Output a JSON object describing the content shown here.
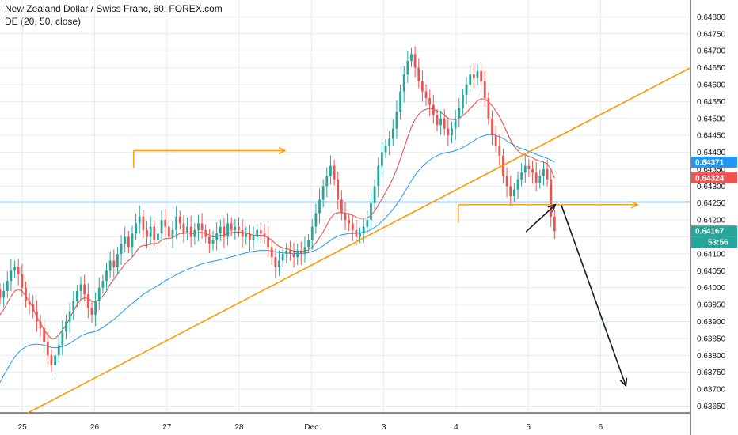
{
  "header": {
    "title": "New Zealand Dollar / Swiss Franc, 60, FOREX.com",
    "indicator": "DE (20, 50, close)"
  },
  "colors": {
    "up": "#26a69a",
    "down": "#ef5350",
    "ma_fast": "#e8443a",
    "ma_slow": "#2196f3",
    "trendline": "#ff9800",
    "hline": "#2196f3",
    "arrow": "#131722",
    "tag_blue": "#2196f3",
    "tag_red": "#ef5350",
    "tag_teal": "#26a69a",
    "grid": "#e6ecf0"
  },
  "chart_data": {
    "type": "candlestick",
    "title": "New Zealand Dollar / Swiss Franc, 60, FOREX.com",
    "ylim": [
      0.6363,
      0.6485
    ],
    "y_ticks": [
      "0.64800",
      "0.64750",
      "0.64700",
      "0.64650",
      "0.64600",
      "0.64550",
      "0.64500",
      "0.64450",
      "0.64400",
      "0.64350",
      "0.64300",
      "0.64250",
      "0.64200",
      "0.64150",
      "0.64100",
      "0.64050",
      "0.64000",
      "0.63950",
      "0.63900",
      "0.63850",
      "0.63800",
      "0.63750",
      "0.63700",
      "0.63650"
    ],
    "x_ticks": [
      "25",
      "26",
      "27",
      "28",
      "Dec",
      "3",
      "4",
      "5",
      "6"
    ],
    "x_tick_pos": [
      0.6,
      25.2,
      49.8,
      74.4,
      99,
      123.6,
      148.2,
      172.8,
      197.4
    ],
    "xlim": [
      -7,
      228
    ],
    "price_tags": [
      {
        "label": "0.64371",
        "value": 0.64371,
        "color": "blue"
      },
      {
        "label": "0.64324",
        "value": 0.64324,
        "color": "red"
      },
      {
        "label": "0.64167",
        "value": 0.64167,
        "color": "teal"
      }
    ],
    "countdown": "53:56",
    "drawings": {
      "horizontal_line": 0.64253,
      "trendline": [
        [
          2.5,
          0.6363
        ],
        [
          228,
          0.6465
        ]
      ],
      "box_top": {
        "x": [
          38.5,
          90
        ],
        "y": 0.64405
      },
      "box_mid": {
        "x": [
          149,
          210
        ],
        "y": 0.64245
      },
      "arrow_short": [
        [
          172,
          0.64165
        ],
        [
          182,
          0.64245
        ]
      ],
      "arrow_long": [
        [
          184,
          0.64245
        ],
        [
          206,
          0.6371
        ]
      ]
    },
    "candles": {
      "start_x": -7,
      "step": 1.25,
      "open0": 0.63995,
      "series_encoding": "close-to-close path",
      "closes": [
        0.6397,
        0.6399,
        0.6402,
        0.6405,
        0.6406,
        0.6404,
        0.64,
        0.6396,
        0.6395,
        0.6393,
        0.639,
        0.6388,
        0.6384,
        0.638,
        0.6377,
        0.638,
        0.6383,
        0.6387,
        0.639,
        0.6393,
        0.6396,
        0.6399,
        0.6401,
        0.6398,
        0.6394,
        0.6392,
        0.6396,
        0.64,
        0.6402,
        0.6405,
        0.6408,
        0.6406,
        0.641,
        0.6413,
        0.6415,
        0.6412,
        0.6416,
        0.6419,
        0.6421,
        0.6417,
        0.6415,
        0.6418,
        0.6414,
        0.6416,
        0.642,
        0.6418,
        0.6415,
        0.6417,
        0.6421,
        0.6419,
        0.6416,
        0.6418,
        0.6415,
        0.6417,
        0.6419,
        0.6417,
        0.6415,
        0.6413,
        0.6414,
        0.6416,
        0.6418,
        0.6415,
        0.6419,
        0.6417,
        0.6418,
        0.6417,
        0.6415,
        0.6416,
        0.6414,
        0.6415,
        0.6417,
        0.6416,
        0.6415,
        0.6412,
        0.6409,
        0.6406,
        0.6408,
        0.641,
        0.6411,
        0.641,
        0.6409,
        0.6411,
        0.641,
        0.6412,
        0.6414,
        0.6418,
        0.6422,
        0.6426,
        0.643,
        0.6433,
        0.6436,
        0.6432,
        0.6426,
        0.6422,
        0.642,
        0.6419,
        0.6417,
        0.6415,
        0.6416,
        0.6418,
        0.642,
        0.6425,
        0.643,
        0.6436,
        0.644,
        0.6442,
        0.6444,
        0.6447,
        0.6452,
        0.6458,
        0.6463,
        0.6467,
        0.6469,
        0.6465,
        0.6461,
        0.6458,
        0.6456,
        0.6454,
        0.6451,
        0.6448,
        0.645,
        0.6447,
        0.6445,
        0.6447,
        0.645,
        0.6453,
        0.6457,
        0.646,
        0.6463,
        0.6462,
        0.6464,
        0.6461,
        0.6456,
        0.645,
        0.6445,
        0.6442,
        0.6439,
        0.6433,
        0.643,
        0.6427,
        0.6429,
        0.6432,
        0.6434,
        0.6436,
        0.6435,
        0.6434,
        0.6431,
        0.6433,
        0.6435,
        0.6432,
        0.6421,
        0.64167
      ]
    },
    "ma_fast_values": {
      "start_x": -7,
      "step": 1.25,
      "values": [
        0.6392,
        0.63935,
        0.63955,
        0.63975,
        0.6399,
        0.63995,
        0.6399,
        0.63975,
        0.6396,
        0.6394,
        0.63915,
        0.63895,
        0.63875,
        0.6386,
        0.6385,
        0.6385,
        0.6386,
        0.63875,
        0.6389,
        0.6391,
        0.6393,
        0.6395,
        0.63965,
        0.6397,
        0.63968,
        0.6396,
        0.63958,
        0.63965,
        0.63975,
        0.6399,
        0.6401,
        0.64025,
        0.6404,
        0.64055,
        0.6407,
        0.6408,
        0.6409,
        0.64105,
        0.6412,
        0.64125,
        0.64125,
        0.6413,
        0.6413,
        0.64132,
        0.6414,
        0.64145,
        0.64145,
        0.64148,
        0.64155,
        0.6416,
        0.6416,
        0.64162,
        0.6416,
        0.6416,
        0.64163,
        0.64163,
        0.6416,
        0.64155,
        0.6415,
        0.6415,
        0.64155,
        0.64155,
        0.6416,
        0.64162,
        0.64164,
        0.64165,
        0.64163,
        0.64162,
        0.64158,
        0.64155,
        0.64155,
        0.64155,
        0.64153,
        0.64148,
        0.6414,
        0.6413,
        0.64122,
        0.64118,
        0.64115,
        0.64112,
        0.64108,
        0.64108,
        0.64107,
        0.64108,
        0.64112,
        0.6412,
        0.64132,
        0.64148,
        0.64165,
        0.64185,
        0.64205,
        0.64218,
        0.64222,
        0.64222,
        0.6422,
        0.64218,
        0.64214,
        0.64208,
        0.64205,
        0.64205,
        0.64206,
        0.64214,
        0.64226,
        0.64244,
        0.64262,
        0.64282,
        0.64302,
        0.64324,
        0.6435,
        0.6438,
        0.64412,
        0.64445,
        0.64475,
        0.64497,
        0.64512,
        0.64522,
        0.64527,
        0.6453,
        0.64528,
        0.64522,
        0.64518,
        0.6451,
        0.645,
        0.64497,
        0.64497,
        0.645,
        0.64508,
        0.64518,
        0.6453,
        0.6454,
        0.64552,
        0.64558,
        0.64557,
        0.6455,
        0.64538,
        0.64522,
        0.64505,
        0.64483,
        0.6446,
        0.64436,
        0.64418,
        0.64404,
        0.64396,
        0.64392,
        0.64388,
        0.64384,
        0.64378,
        0.64374,
        0.64371,
        0.64366,
        0.6435,
        0.64324
      ]
    },
    "ma_slow_values": {
      "start_x": -7,
      "step": 1.25,
      "values": [
        0.6372,
        0.6374,
        0.6376,
        0.63778,
        0.63795,
        0.63808,
        0.63818,
        0.63825,
        0.6383,
        0.63832,
        0.63833,
        0.63832,
        0.6383,
        0.63827,
        0.63823,
        0.63822,
        0.63823,
        0.63826,
        0.6383,
        0.63836,
        0.63843,
        0.6385,
        0.63857,
        0.63862,
        0.63866,
        0.63868,
        0.63871,
        0.63876,
        0.63882,
        0.6389,
        0.63898,
        0.63906,
        0.63915,
        0.63925,
        0.63935,
        0.63944,
        0.63953,
        0.63962,
        0.63972,
        0.6398,
        0.63987,
        0.63994,
        0.64,
        0.64006,
        0.64013,
        0.6402,
        0.64026,
        0.64032,
        0.64038,
        0.64044,
        0.64049,
        0.64054,
        0.64058,
        0.64062,
        0.64066,
        0.6407,
        0.64073,
        0.64076,
        0.64078,
        0.6408,
        0.64083,
        0.64085,
        0.64088,
        0.64091,
        0.64094,
        0.64097,
        0.641,
        0.64103,
        0.64105,
        0.64107,
        0.64109,
        0.6411,
        0.6411,
        0.6411,
        0.64108,
        0.64106,
        0.64104,
        0.64103,
        0.64102,
        0.64102,
        0.64101,
        0.64101,
        0.64101,
        0.64102,
        0.64104,
        0.64107,
        0.64111,
        0.64117,
        0.64124,
        0.64132,
        0.6414,
        0.64147,
        0.64152,
        0.64156,
        0.64158,
        0.6416,
        0.6416,
        0.64161,
        0.64162,
        0.64164,
        0.64166,
        0.64171,
        0.64178,
        0.64186,
        0.64196,
        0.64207,
        0.64219,
        0.64232,
        0.64246,
        0.64262,
        0.6428,
        0.64298,
        0.64316,
        0.64332,
        0.64346,
        0.64358,
        0.64368,
        0.64377,
        0.64385,
        0.6439,
        0.64395,
        0.64398,
        0.644,
        0.64402,
        0.64405,
        0.64409,
        0.64414,
        0.6442,
        0.64427,
        0.64434,
        0.64441,
        0.64446,
        0.6445,
        0.64452,
        0.64452,
        0.6445,
        0.64446,
        0.64441,
        0.64434,
        0.64427,
        0.64421,
        0.64415,
        0.64411,
        0.64407,
        0.64403,
        0.64399,
        0.64394,
        0.6439,
        0.64386,
        0.64382,
        0.64377,
        0.64371
      ]
    }
  }
}
